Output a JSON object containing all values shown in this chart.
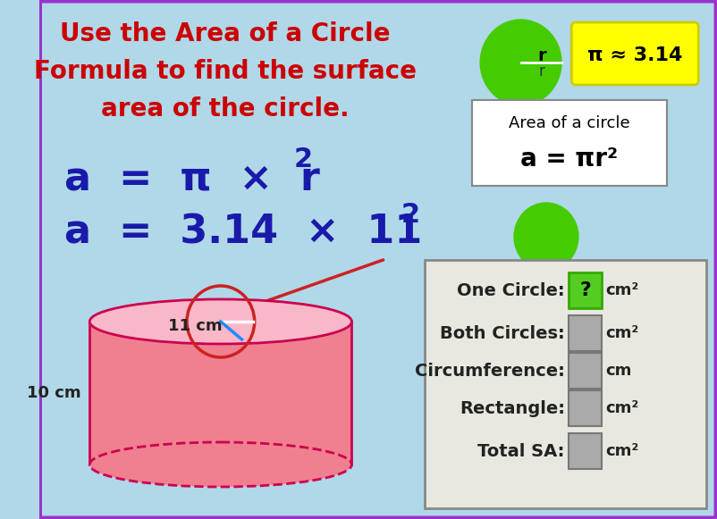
{
  "bg_color": "#b0d8e8",
  "title_lines": [
    "Use the Area of a Circle",
    "Formula to find the surface",
    "area of the circle."
  ],
  "title_color": "#cc0000",
  "title_fontsize": 20,
  "formula1": "a  =  π  ×  r",
  "formula2": "a  =  3.14  ×  11",
  "formula_color": "#1a1aaa",
  "formula_fontsize": 32,
  "pi_box_text": "π ≈ 3.14",
  "pi_box_color": "#ffff00",
  "area_box_title": "Area of a circle",
  "area_box_formula": "a = πr²",
  "area_box_bg": "#ffffff",
  "circle_color": "#44cc00",
  "cylinder_color": "#f08090",
  "radius_label": "11 cm",
  "height_label": "10 cm",
  "answer_box_bg": "#e8e8e0",
  "answer_box_border": "#888888",
  "one_circle_label": "One Circle:",
  "both_circles_label": "Both Circles:",
  "circumference_label": "Circumference:",
  "rectangle_label": "Rectangle:",
  "total_sa_label": "Total SA:",
  "unit_sq": "cm²",
  "unit_lin": "cm",
  "question_mark_color": "#44cc00",
  "question_mark_bg": "#44cc00",
  "outer_border_color": "#9933cc"
}
